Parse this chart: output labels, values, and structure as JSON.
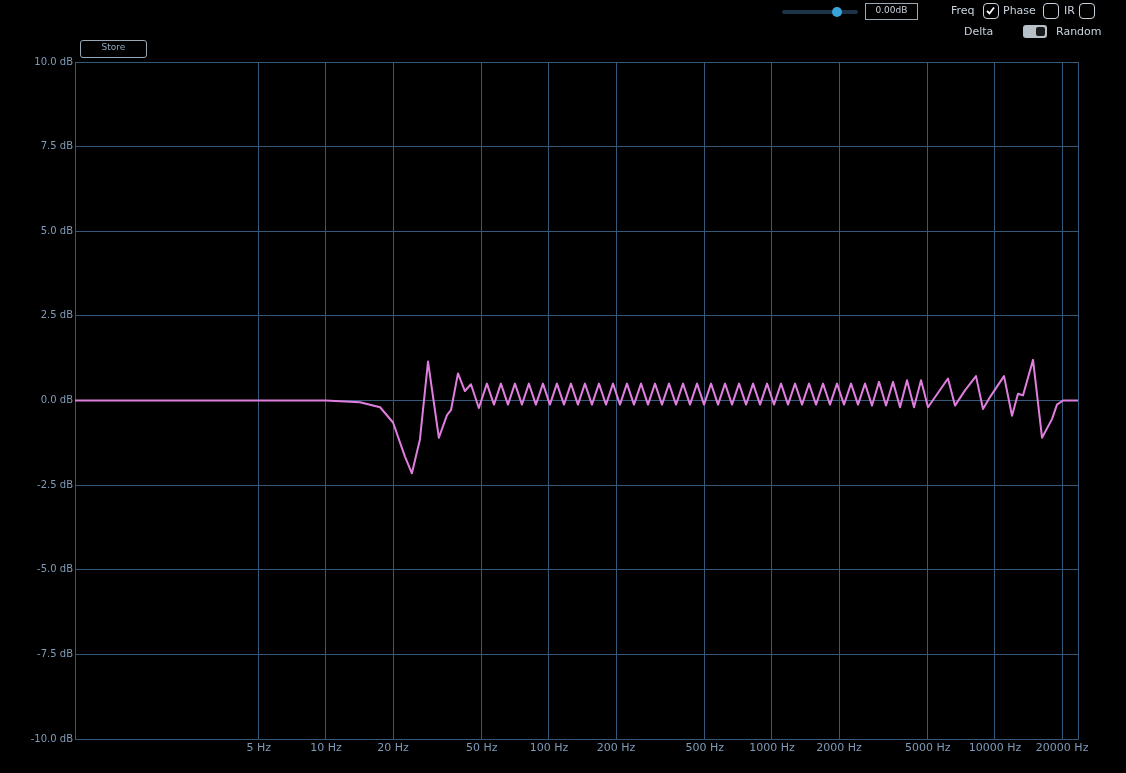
{
  "chart_data": {
    "type": "line",
    "annotations": [
      "Store",
      "0.00dB",
      "Freq",
      "Phase",
      "IR",
      "Delta",
      "Random"
    ],
    "x": [
      0.75,
      10,
      12.2,
      14.2,
      17.5,
      20.0,
      22.6,
      24.3,
      26.4,
      28.7,
      32.1,
      34.9,
      36.4,
      39.1,
      42.0,
      44.7,
      48.5,
      52.7,
      56.7,
      60.9,
      65.5,
      70.4,
      75.7,
      81.3,
      87.4,
      94.0,
      101.0,
      108.6,
      116.8,
      125.5,
      134.9,
      145.0,
      155.9,
      167.6,
      180.2,
      193.7,
      208.2,
      223.8,
      240.6,
      258.7,
      278.1,
      298.9,
      321.3,
      345.4,
      371.3,
      399.2,
      429.1,
      461.3,
      495.9,
      533.1,
      573.1,
      616.0,
      662.2,
      711.9,
      765.3,
      822.7,
      884.4,
      950.7,
      1021,
      1098,
      1180,
      1269,
      1364,
      1466,
      1576,
      1694,
      1820,
      1957,
      2104,
      2262,
      2431,
      2613,
      2809,
      3020,
      3246,
      3489,
      3751,
      4032,
      4334,
      4659,
      5008,
      6154,
      6616,
      7337,
      8219,
      8834,
      9497,
      10975,
      11920,
      12680,
      13350,
      14810,
      16250,
      18010,
      18970,
      20180,
      23560
    ],
    "series": [
      {
        "color": "#e07ee0",
        "values": [
          0,
          0,
          -0.03,
          -0.05,
          -0.2,
          -0.65,
          -1.65,
          -2.15,
          -1.15,
          1.15,
          -1.1,
          -0.43,
          -0.28,
          0.8,
          0.28,
          0.48,
          -0.22,
          0.5,
          -0.12,
          0.5,
          -0.12,
          0.5,
          -0.12,
          0.5,
          -0.12,
          0.5,
          -0.12,
          0.5,
          -0.12,
          0.5,
          -0.12,
          0.5,
          -0.12,
          0.5,
          -0.12,
          0.5,
          -0.12,
          0.5,
          -0.12,
          0.5,
          -0.12,
          0.5,
          -0.12,
          0.5,
          -0.12,
          0.5,
          -0.12,
          0.5,
          -0.12,
          0.5,
          -0.12,
          0.5,
          -0.12,
          0.5,
          -0.12,
          0.5,
          -0.12,
          0.5,
          -0.12,
          0.5,
          -0.12,
          0.5,
          -0.12,
          0.5,
          -0.12,
          0.5,
          -0.12,
          0.5,
          -0.12,
          0.5,
          -0.12,
          0.5,
          -0.15,
          0.55,
          -0.15,
          0.55,
          -0.2,
          0.6,
          -0.2,
          0.6,
          -0.2,
          0.65,
          -0.15,
          0.3,
          0.72,
          -0.25,
          0.1,
          0.72,
          -0.45,
          0.2,
          0.15,
          1.2,
          -1.1,
          -0.55,
          -0.12,
          0,
          0
        ]
      }
    ],
    "xlim": [
      0.75,
      23560
    ],
    "ylim": [
      -10,
      10
    ],
    "xticks": [
      {
        "value": 5,
        "label": "5 Hz"
      },
      {
        "value": 10,
        "label": "10 Hz"
      },
      {
        "value": 20,
        "label": "20 Hz"
      },
      {
        "value": 50,
        "label": "50 Hz"
      },
      {
        "value": 100,
        "label": "100 Hz"
      },
      {
        "value": 200,
        "label": "200 Hz"
      },
      {
        "value": 500,
        "label": "500 Hz"
      },
      {
        "value": 1000,
        "label": "1000 Hz"
      },
      {
        "value": 2000,
        "label": "2000 Hz"
      },
      {
        "value": 5000,
        "label": "5000 Hz"
      },
      {
        "value": 10000,
        "label": "10000 Hz"
      },
      {
        "value": 20000,
        "label": "20000 Hz"
      }
    ],
    "yticks": [
      {
        "value": -10,
        "label": "-10.0 dB"
      },
      {
        "value": -7.5,
        "label": "-7.5 dB"
      },
      {
        "value": -5,
        "label": "-5.0 dB"
      },
      {
        "value": -2.5,
        "label": "-2.5 dB"
      },
      {
        "value": 0,
        "label": "0.0 dB"
      },
      {
        "value": 2.5,
        "label": "2.5 dB"
      },
      {
        "value": 5,
        "label": "5.0 dB"
      },
      {
        "value": 7.5,
        "label": "7.5 dB"
      },
      {
        "value": 10,
        "label": "10.0 dB"
      }
    ],
    "log": "x",
    "grid": true,
    "marker": "none",
    "line_style": "solid"
  }
}
